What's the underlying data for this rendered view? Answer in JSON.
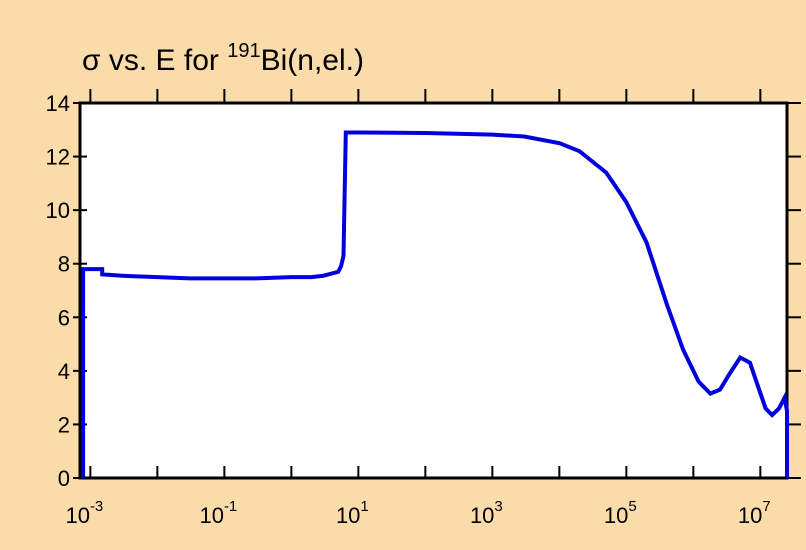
{
  "chart_data": {
    "type": "line",
    "title": {
      "prefix": "σ vs. E for ",
      "mass_number": "191",
      "suffix": "Bi(n,el.)"
    },
    "xlabel": "",
    "ylabel": "",
    "x_scale": "log",
    "xlim": [
      0.0007,
      25000000
    ],
    "ylim": [
      0,
      14
    ],
    "x_ticks": [
      {
        "base": "10",
        "exp": "-3",
        "value": 0.001
      },
      {
        "base": "10",
        "exp": "-1",
        "value": 0.1
      },
      {
        "base": "10",
        "exp": "1",
        "value": 10
      },
      {
        "base": "10",
        "exp": "3",
        "value": 1000
      },
      {
        "base": "10",
        "exp": "5",
        "value": 100000
      },
      {
        "base": "10",
        "exp": "7",
        "value": 10000000
      }
    ],
    "y_ticks": [
      "0",
      "2",
      "4",
      "6",
      "8",
      "10",
      "12",
      "14"
    ],
    "grid": false,
    "line_color": "#0000dd",
    "series": [
      {
        "points": [
          [
            0.00078,
            0
          ],
          [
            0.00078,
            7.8
          ],
          [
            0.0015,
            7.8
          ],
          [
            0.0015,
            7.6
          ],
          [
            0.003,
            7.55
          ],
          [
            0.01,
            7.5
          ],
          [
            0.03,
            7.45
          ],
          [
            0.1,
            7.45
          ],
          [
            0.3,
            7.45
          ],
          [
            1,
            7.5
          ],
          [
            2,
            7.5
          ],
          [
            3,
            7.55
          ],
          [
            5,
            7.7
          ],
          [
            5.5,
            7.9
          ],
          [
            6,
            8.3
          ],
          [
            6.5,
            12.9
          ],
          [
            10,
            12.9
          ],
          [
            100,
            12.88
          ],
          [
            1000,
            12.82
          ],
          [
            3000,
            12.75
          ],
          [
            10000,
            12.5
          ],
          [
            20000,
            12.2
          ],
          [
            50000,
            11.4
          ],
          [
            100000,
            10.3
          ],
          [
            200000,
            8.8
          ],
          [
            400000,
            6.5
          ],
          [
            700000,
            4.8
          ],
          [
            1200000,
            3.6
          ],
          [
            1800000,
            3.15
          ],
          [
            2500000,
            3.3
          ],
          [
            3500000,
            3.9
          ],
          [
            5000000,
            4.5
          ],
          [
            7000000,
            4.3
          ],
          [
            9000000,
            3.5
          ],
          [
            12000000,
            2.6
          ],
          [
            15000000,
            2.35
          ],
          [
            19000000,
            2.6
          ],
          [
            23000000,
            3.0
          ],
          [
            25000000,
            2.5
          ],
          [
            25000000,
            0
          ]
        ]
      }
    ]
  }
}
